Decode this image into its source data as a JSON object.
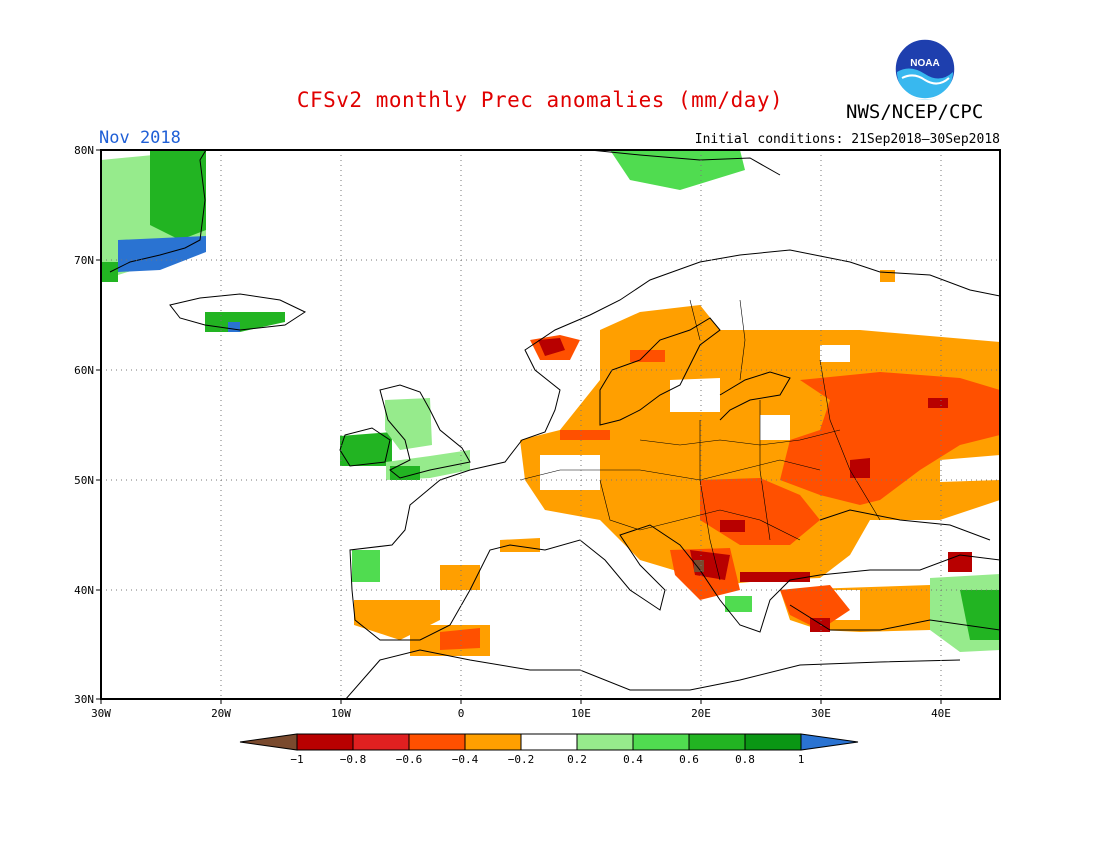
{
  "header": {
    "title": "CFSv2 monthly Prec anomalies (mm/day)",
    "agency": "NWS/NCEP/CPC",
    "month": "Nov 2018",
    "initial_conditions": "Initial conditions: 21Sep2018–30Sep2018",
    "logo_text": "NOAA"
  },
  "map": {
    "lon_range": [
      -30,
      45
    ],
    "lat_range": [
      30,
      80
    ],
    "grid": true,
    "lat_labels": [
      "80N",
      "70N",
      "60N",
      "50N",
      "40N",
      "30N"
    ],
    "lon_labels": [
      "30W",
      "20W",
      "10W",
      "0",
      "10E",
      "20E",
      "30E",
      "40E"
    ]
  },
  "legend": {
    "tick_labels": [
      "−1",
      "−0.8",
      "−0.6",
      "−0.4",
      "−0.2",
      "0.2",
      "0.4",
      "0.6",
      "0.8",
      "1"
    ],
    "colors": [
      "#7a4a2e",
      "#b80000",
      "#e02020",
      "#ff5000",
      "#ff9f00",
      "#ffffff",
      "#96eb8c",
      "#50dc50",
      "#22b422",
      "#0a9614",
      "#2a73d2"
    ]
  },
  "anomaly_regions": [
    {
      "area": "Western Russia",
      "level": "-0.6"
    },
    {
      "area": "Central Europe",
      "level": "-0.4"
    },
    {
      "area": "Balkans",
      "level": "-0.8"
    },
    {
      "area": "Ireland",
      "level": "0.6"
    },
    {
      "area": "East Greenland",
      "level": "0.8"
    },
    {
      "area": "Caucasus",
      "level": "0.4"
    }
  ]
}
